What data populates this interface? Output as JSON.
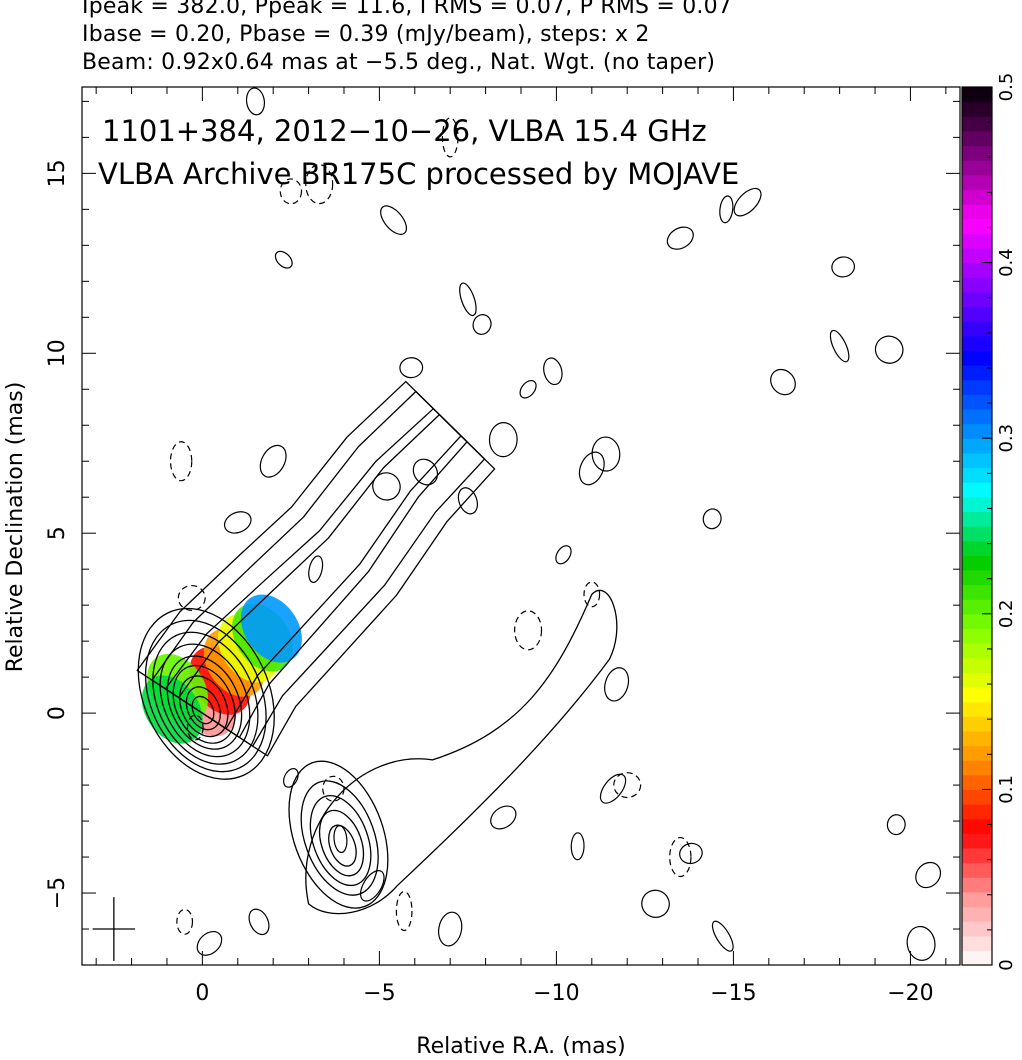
{
  "header": {
    "line1": "Ipeak = 382.0, Ppeak = 11.6, I RMS = 0.07, P RMS = 0.07",
    "line2": "Ibase = 0.20, Pbase = 0.39 (mJy/beam), steps: x 2",
    "line3": "Beam: 0.92x0.64 mas at −5.5 deg., Nat. Wgt. (no taper)"
  },
  "chart_data": {
    "type": "heatmap",
    "annotation_line1": "1101+384, 2012−10−26, VLBA 15.4 GHz",
    "annotation_line2": "VLBA Archive BR175C processed by MOJAVE",
    "xlabel": "Relative R.A. (mas)",
    "ylabel": "Relative Declination (mas)",
    "xlim": [
      3.4,
      -21.4
    ],
    "ylim": [
      -7.0,
      17.4
    ],
    "x_ticks": [
      0,
      -5,
      -10,
      -15,
      -20
    ],
    "x_tick_labels": [
      "0",
      "−5",
      "−10",
      "−15",
      "−20"
    ],
    "y_ticks": [
      -5,
      0,
      5,
      10,
      15
    ],
    "y_tick_labels": [
      "−5",
      "0",
      "5",
      "10",
      "15"
    ],
    "colorbar": {
      "min": 0,
      "max": 0.5,
      "ticks": [
        0,
        0.1,
        0.2,
        0.3,
        0.4,
        0.5
      ],
      "tick_labels": [
        "0",
        "0.1",
        "0.2",
        "0.3",
        "0.4",
        "0.5"
      ],
      "colors": [
        "#ffffff",
        "#ff9999",
        "#ff0000",
        "#ff8c00",
        "#ffff00",
        "#7fff00",
        "#00cc00",
        "#00ffff",
        "#0080ff",
        "#0000ff",
        "#8000ff",
        "#ff00ff",
        "#800080",
        "#000000"
      ]
    },
    "beam": {
      "major_mas": 0.92,
      "minor_mas": 0.64,
      "pa_deg": -5.5
    },
    "core": {
      "ra": 0.0,
      "dec": 0.0,
      "contour_radii_mas": [
        0.35,
        0.55,
        0.78,
        1.0,
        1.2,
        1.45,
        1.7,
        1.95,
        2.2
      ]
    },
    "jet_ridge": [
      [
        0.0,
        0.0
      ],
      [
        -1.0,
        1.5
      ],
      [
        -2.5,
        3.0
      ],
      [
        -4.0,
        4.5
      ],
      [
        -5.5,
        6.5
      ],
      [
        -7.0,
        8.0
      ]
    ],
    "southern_blob": {
      "ra": -4.0,
      "dec": -3.8,
      "contour_radii_mas": [
        0.5,
        0.8,
        1.1,
        1.4,
        1.8
      ]
    },
    "polarized_emission": [
      {
        "ra": -0.1,
        "dec": 0.3,
        "value": 0.04
      },
      {
        "ra": -0.5,
        "dec": 0.9,
        "value": 0.08
      },
      {
        "ra": -0.9,
        "dec": 1.4,
        "value": 0.12
      },
      {
        "ra": -1.3,
        "dec": 1.8,
        "value": 0.16
      },
      {
        "ra": -1.7,
        "dec": 2.1,
        "value": 0.21
      },
      {
        "ra": -1.95,
        "dec": 2.35,
        "value": 0.3
      },
      {
        "ra": 0.7,
        "dec": 0.7,
        "value": 0.2
      },
      {
        "ra": 0.85,
        "dec": 0.1,
        "value": 0.24
      }
    ],
    "noise_contours": [
      [
        -2.3,
        12.6
      ],
      [
        -1.5,
        17.0
      ],
      [
        -2.0,
        7.0
      ],
      [
        -1.0,
        5.3
      ],
      [
        -3.2,
        4.0
      ],
      [
        -5.4,
        13.7
      ],
      [
        -5.9,
        9.6
      ],
      [
        -5.2,
        6.3
      ],
      [
        -7.5,
        11.5
      ],
      [
        -7.9,
        10.8
      ],
      [
        -6.3,
        6.7
      ],
      [
        -8.5,
        7.6
      ],
      [
        -9.2,
        9.0
      ],
      [
        -9.9,
        9.5
      ],
      [
        -11.0,
        6.8
      ],
      [
        -13.5,
        13.2
      ],
      [
        -14.8,
        14.0
      ],
      [
        -15.4,
        14.2
      ],
      [
        -18.1,
        12.4
      ],
      [
        -19.4,
        10.1
      ],
      [
        -18.0,
        10.2
      ],
      [
        -14.4,
        5.4
      ],
      [
        -16.4,
        9.2
      ],
      [
        -11.4,
        7.2
      ],
      [
        -10.2,
        4.4
      ],
      [
        -7.5,
        5.9
      ],
      [
        -11.7,
        0.8
      ],
      [
        -8.5,
        -2.9
      ],
      [
        -10.6,
        -3.7
      ],
      [
        -11.6,
        -2.1
      ],
      [
        -13.8,
        -3.9
      ],
      [
        -12.8,
        -5.3
      ],
      [
        -14.7,
        -6.2
      ],
      [
        -19.6,
        -3.1
      ],
      [
        -20.5,
        -4.5
      ],
      [
        -20.3,
        -6.4
      ],
      [
        -2.5,
        -1.8
      ],
      [
        -1.6,
        -5.8
      ],
      [
        -7.0,
        -6.0
      ],
      [
        -0.2,
        -6.4
      ],
      [
        -3.9,
        -3.5
      ],
      [
        -4.8,
        -4.8
      ]
    ],
    "dashed_contours": [
      [
        0.2,
        -0.4
      ],
      [
        0.6,
        7.0
      ],
      [
        0.3,
        3.2
      ],
      [
        -7.0,
        16.0
      ],
      [
        -2.5,
        14.5
      ],
      [
        -3.3,
        14.7
      ],
      [
        -11.0,
        3.3
      ],
      [
        -13.5,
        -4.0
      ],
      [
        -12.0,
        -2.0
      ],
      [
        -5.7,
        -5.5
      ],
      [
        -3.7,
        -2.1
      ],
      [
        -9.2,
        2.3
      ],
      [
        0.5,
        -5.8
      ]
    ]
  }
}
